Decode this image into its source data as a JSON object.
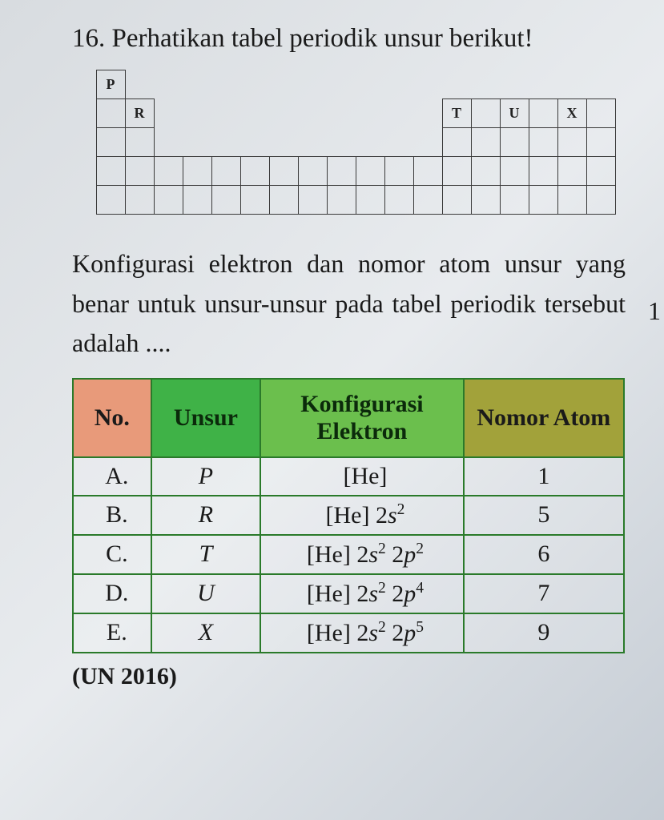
{
  "question": {
    "number_text": "16.",
    "prompt": "Perhatikan tabel periodik unsur berikut!"
  },
  "periodic": {
    "cells": [
      {
        "r": 1,
        "c": 1,
        "label": "P"
      },
      {
        "r": 2,
        "c": 1,
        "label": ""
      },
      {
        "r": 2,
        "c": 2,
        "label": "R"
      },
      {
        "r": 2,
        "c": 13,
        "label": "T"
      },
      {
        "r": 2,
        "c": 14,
        "label": ""
      },
      {
        "r": 2,
        "c": 15,
        "label": "U"
      },
      {
        "r": 2,
        "c": 16,
        "label": ""
      },
      {
        "r": 2,
        "c": 17,
        "label": "X"
      },
      {
        "r": 2,
        "c": 18,
        "label": ""
      },
      {
        "r": 3,
        "c": 1,
        "label": ""
      },
      {
        "r": 3,
        "c": 2,
        "label": ""
      },
      {
        "r": 3,
        "c": 13,
        "label": ""
      },
      {
        "r": 3,
        "c": 14,
        "label": ""
      },
      {
        "r": 3,
        "c": 15,
        "label": ""
      },
      {
        "r": 3,
        "c": 16,
        "label": ""
      },
      {
        "r": 3,
        "c": 17,
        "label": ""
      },
      {
        "r": 3,
        "c": 18,
        "label": ""
      },
      {
        "r": 4,
        "c": 1,
        "label": ""
      },
      {
        "r": 4,
        "c": 2,
        "label": ""
      },
      {
        "r": 4,
        "c": 3,
        "label": ""
      },
      {
        "r": 4,
        "c": 4,
        "label": ""
      },
      {
        "r": 4,
        "c": 5,
        "label": ""
      },
      {
        "r": 4,
        "c": 6,
        "label": ""
      },
      {
        "r": 4,
        "c": 7,
        "label": ""
      },
      {
        "r": 4,
        "c": 8,
        "label": ""
      },
      {
        "r": 4,
        "c": 9,
        "label": ""
      },
      {
        "r": 4,
        "c": 10,
        "label": ""
      },
      {
        "r": 4,
        "c": 11,
        "label": ""
      },
      {
        "r": 4,
        "c": 12,
        "label": ""
      },
      {
        "r": 4,
        "c": 13,
        "label": ""
      },
      {
        "r": 4,
        "c": 14,
        "label": ""
      },
      {
        "r": 4,
        "c": 15,
        "label": ""
      },
      {
        "r": 4,
        "c": 16,
        "label": ""
      },
      {
        "r": 4,
        "c": 17,
        "label": ""
      },
      {
        "r": 4,
        "c": 18,
        "label": ""
      },
      {
        "r": 5,
        "c": 1,
        "label": ""
      },
      {
        "r": 5,
        "c": 2,
        "label": ""
      },
      {
        "r": 5,
        "c": 3,
        "label": ""
      },
      {
        "r": 5,
        "c": 4,
        "label": ""
      },
      {
        "r": 5,
        "c": 5,
        "label": ""
      },
      {
        "r": 5,
        "c": 6,
        "label": ""
      },
      {
        "r": 5,
        "c": 7,
        "label": ""
      },
      {
        "r": 5,
        "c": 8,
        "label": ""
      },
      {
        "r": 5,
        "c": 9,
        "label": ""
      },
      {
        "r": 5,
        "c": 10,
        "label": ""
      },
      {
        "r": 5,
        "c": 11,
        "label": ""
      },
      {
        "r": 5,
        "c": 12,
        "label": ""
      },
      {
        "r": 5,
        "c": 13,
        "label": ""
      },
      {
        "r": 5,
        "c": 14,
        "label": ""
      },
      {
        "r": 5,
        "c": 15,
        "label": ""
      },
      {
        "r": 5,
        "c": 16,
        "label": ""
      },
      {
        "r": 5,
        "c": 17,
        "label": ""
      },
      {
        "r": 5,
        "c": 18,
        "label": ""
      }
    ]
  },
  "body_text": "Konfigurasi elektron dan nomor atom unsur yang benar untuk unsur-unsur pada tabel periodik tersebut adalah ....",
  "table": {
    "headers": {
      "no": "No.",
      "unsur": "Unsur",
      "konf": "Konfigurasi Elektron",
      "atom": "Nomor Atom"
    },
    "rows": [
      {
        "no": "A.",
        "unsur": "P",
        "konf_base": "[He]",
        "konf_sub": "",
        "atom": "1"
      },
      {
        "no": "B.",
        "unsur": "R",
        "konf_base": "[He] 2",
        "konf_sub": "s2",
        "atom": "5"
      },
      {
        "no": "C.",
        "unsur": "T",
        "konf_base": "[He] 2",
        "konf_sub": "s2 2p2",
        "atom": "6"
      },
      {
        "no": "D.",
        "unsur": "U",
        "konf_base": "[He] 2",
        "konf_sub": "s2 2p4",
        "atom": "7"
      },
      {
        "no": "E.",
        "unsur": "X",
        "konf_base": "[He] 2",
        "konf_sub": "s2 2p5",
        "atom": "9"
      }
    ]
  },
  "source": "(UN 2016)",
  "edge": "1"
}
